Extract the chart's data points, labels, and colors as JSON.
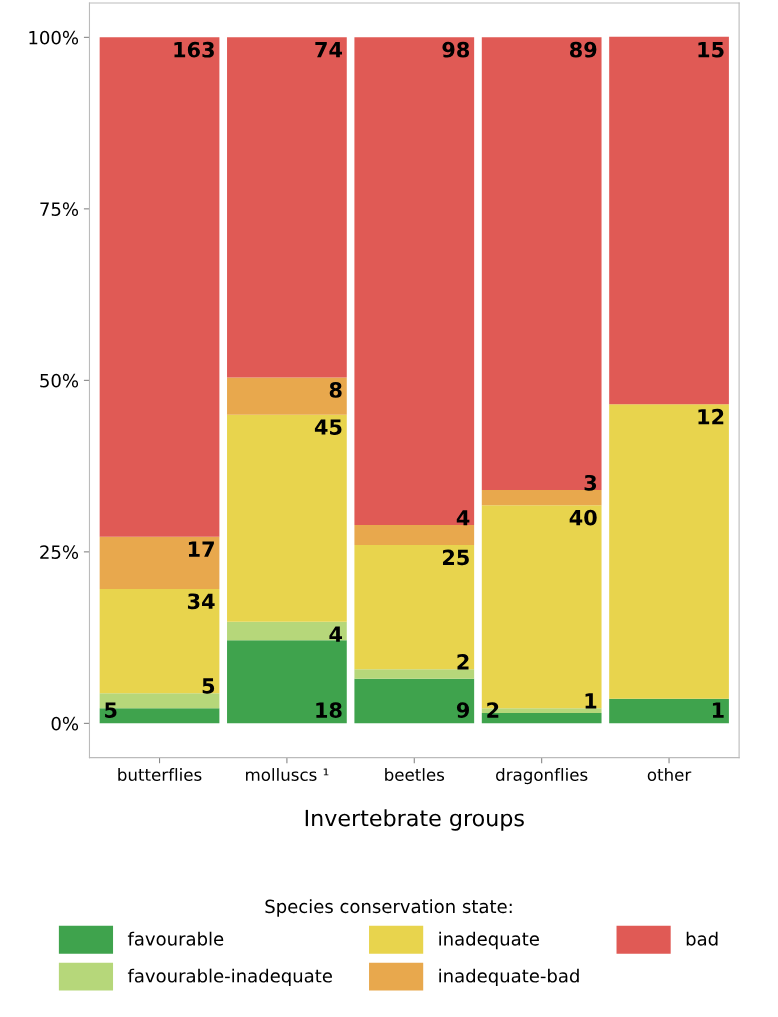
{
  "chart_data": {
    "type": "bar",
    "stacked": true,
    "xlabel": "Invertebrate groups",
    "legend_title": "Species conservation state:",
    "legend": "bottom",
    "categories": [
      "butterflies",
      "molluscs ¹",
      "beetles",
      "dragonflies",
      "other"
    ],
    "series": [
      {
        "name": "favourable",
        "color": "#3fa34d",
        "values": [
          2.2,
          12.1,
          6.5,
          1.5,
          3.6
        ]
      },
      {
        "name": "favourable-inadequate",
        "color": "#b6d77a",
        "values": [
          2.2,
          2.7,
          1.4,
          0.7,
          0
        ]
      },
      {
        "name": "inadequate",
        "color": "#e8d44d",
        "values": [
          15.2,
          30.2,
          18.1,
          29.6,
          42.9
        ]
      },
      {
        "name": "inadequate-bad",
        "color": "#e8a84d",
        "values": [
          7.6,
          5.4,
          2.9,
          2.2,
          0
        ]
      },
      {
        "name": "bad",
        "color": "#e05a55",
        "values": [
          72.8,
          49.6,
          71.1,
          66.0,
          53.6
        ]
      }
    ],
    "annotations": [
      {
        "text": "163",
        "x": "butterflies",
        "y": 100.0
      },
      {
        "text": "17",
        "x": "butterflies",
        "y": 27.2
      },
      {
        "text": "34",
        "x": "butterflies",
        "y": 19.6
      },
      {
        "text": "5",
        "x": "butterflies",
        "y": 4.4
      },
      {
        "text": "5",
        "x": "butterflies",
        "y": 2.2
      },
      {
        "text": "74",
        "x": "molluscs ¹",
        "y": 100.0
      },
      {
        "text": "8",
        "x": "molluscs ¹",
        "y": 50.4
      },
      {
        "text": "45",
        "x": "molluscs ¹",
        "y": 45.0
      },
      {
        "text": "4",
        "x": "molluscs ¹",
        "y": 14.8
      },
      {
        "text": "18",
        "x": "molluscs ¹",
        "y": 0
      },
      {
        "text": "98",
        "x": "beetles",
        "y": 100.0
      },
      {
        "text": "4",
        "x": "beetles",
        "y": 28.9
      },
      {
        "text": "25",
        "x": "beetles",
        "y": 26.0
      },
      {
        "text": "2",
        "x": "beetles",
        "y": 7.9
      },
      {
        "text": "9",
        "x": "beetles",
        "y": 6.5
      },
      {
        "text": "89",
        "x": "dragonflies",
        "y": 100.0
      },
      {
        "text": "3",
        "x": "dragonflies",
        "y": 34.0
      },
      {
        "text": "40",
        "x": "dragonflies",
        "y": 31.8
      },
      {
        "text": "1",
        "x": "dragonflies",
        "y": 2.2
      },
      {
        "text": "2",
        "x": "dragonflies",
        "y": 1.5
      },
      {
        "text": "15",
        "x": "other",
        "y": 100.0
      },
      {
        "text": "12",
        "x": "other",
        "y": 46.5
      },
      {
        "text": "1",
        "x": "other",
        "y": 3.6
      }
    ],
    "ylim": [
      -5,
      105
    ],
    "yticks": [
      {
        "value": 0,
        "label": "0%"
      },
      {
        "value": 25,
        "label": "25%"
      },
      {
        "value": 50,
        "label": "50%"
      },
      {
        "value": 75,
        "label": "75%"
      },
      {
        "value": 100,
        "label": "100%"
      }
    ],
    "grid": false
  }
}
